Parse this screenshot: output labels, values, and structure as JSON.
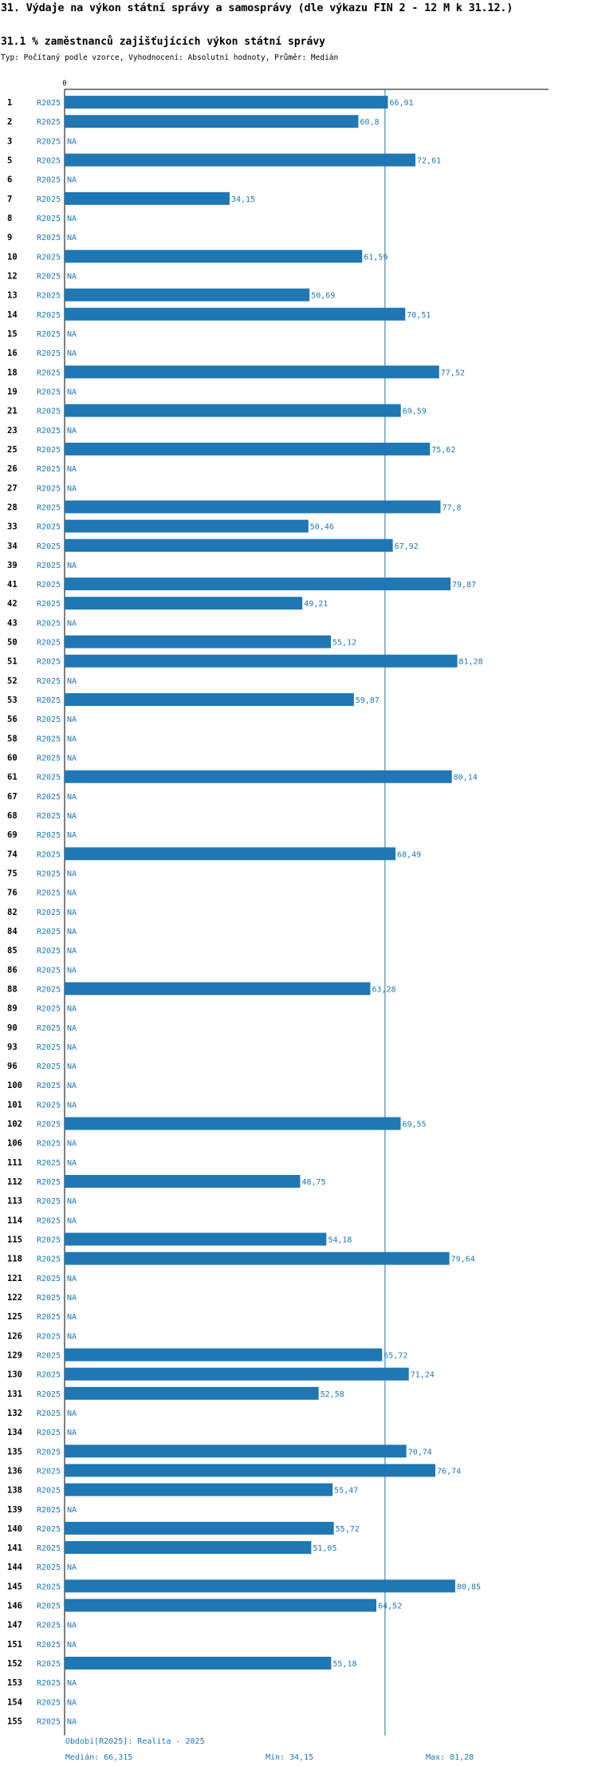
{
  "header": {
    "title": "31. Výdaje na výkon státní správy a samosprávy (dle výkazu FIN 2 - 12 M k 31.12.)",
    "subtitle": "31.1 % zaměstnanců zajišťujících výkon státní správy",
    "meta": "Typ: Počítaný podle vzorce, Vyhodnocení: Absolutní hodnoty, Průměr: Medián"
  },
  "footer": {
    "period": "Období[R2025]: Realita - 2025",
    "median": "Medián: 66,315",
    "min": "Min: 34,15",
    "max": "Max: 81,28"
  },
  "colors": {
    "bar": "#1f77b4",
    "text": "#000000",
    "accent": "#1f77b4"
  },
  "chart_data": {
    "type": "bar",
    "orientation": "horizontal",
    "zero_label": "0",
    "na_label": "NA",
    "decimal_separator": ",",
    "median": 66.315,
    "xlim": [
      0,
      82
    ],
    "series": [
      {
        "name": "R2025",
        "values": [
          66.91,
          60.8,
          null,
          72.61,
          null,
          34.15,
          null,
          null,
          61.59,
          null,
          50.69,
          70.51,
          null,
          null,
          77.52,
          null,
          69.59,
          null,
          75.62,
          null,
          null,
          77.8,
          50.46,
          67.92,
          null,
          79.87,
          49.21,
          null,
          55.12,
          81.28,
          null,
          59.87,
          null,
          null,
          null,
          80.14,
          null,
          null,
          null,
          68.49,
          null,
          null,
          null,
          null,
          null,
          null,
          63.28,
          null,
          null,
          null,
          null,
          null,
          null,
          69.55,
          null,
          null,
          48.75,
          null,
          null,
          54.18,
          79.64,
          null,
          null,
          null,
          null,
          65.72,
          71.24,
          52.58,
          null,
          null,
          70.74,
          76.74,
          55.47,
          null,
          55.72,
          51.05,
          null,
          80.85,
          64.52,
          null,
          null,
          55.18,
          null,
          null,
          null
        ]
      }
    ],
    "categories": [
      "1",
      "2",
      "3",
      "5",
      "6",
      "7",
      "8",
      "9",
      "10",
      "12",
      "13",
      "14",
      "15",
      "16",
      "18",
      "19",
      "21",
      "23",
      "25",
      "26",
      "27",
      "28",
      "33",
      "34",
      "39",
      "41",
      "42",
      "43",
      "50",
      "51",
      "52",
      "53",
      "56",
      "58",
      "60",
      "61",
      "67",
      "68",
      "69",
      "74",
      "75",
      "76",
      "82",
      "84",
      "85",
      "86",
      "88",
      "89",
      "90",
      "93",
      "96",
      "100",
      "101",
      "102",
      "106",
      "111",
      "112",
      "113",
      "114",
      "115",
      "118",
      "121",
      "122",
      "125",
      "126",
      "129",
      "130",
      "131",
      "132",
      "134",
      "135",
      "136",
      "138",
      "139",
      "140",
      "141",
      "144",
      "145",
      "146",
      "147",
      "151",
      "152",
      "153",
      "154",
      "155"
    ]
  }
}
